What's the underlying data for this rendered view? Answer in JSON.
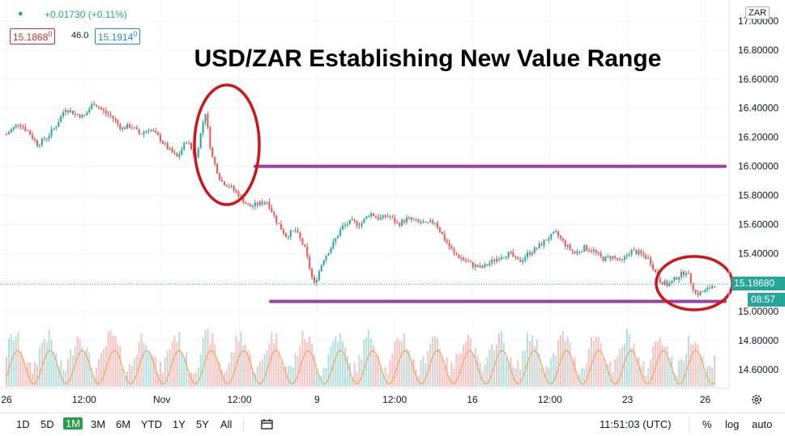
{
  "header": {
    "change": "+0.01730 (+0.11%)",
    "sell_price": "15.1868",
    "sell_suffix": "0",
    "spread": "46.0",
    "buy_price": "15.1914",
    "buy_suffix": "0",
    "currency": "ZAR",
    "colors": {
      "sell": "#d32f2f",
      "buy": "#1e88e5",
      "dot": "#26a69a"
    }
  },
  "chart_data": {
    "type": "candlestick",
    "title": "USD/ZAR Establishing New Value Range",
    "y_ticks": [
      "14.60000",
      "14.80000",
      "15.00000",
      "15.20000",
      "15.40000",
      "15.60000",
      "15.80000",
      "16.00000",
      "16.20000",
      "16.40000",
      "16.60000",
      "16.80000",
      "17.00000"
    ],
    "ylim": [
      14.5,
      17.1
    ],
    "x_ticks": [
      {
        "label": "26",
        "t": 0
      },
      {
        "label": "12:00",
        "t": 0.5
      },
      {
        "label": "Nov",
        "t": 1
      },
      {
        "label": "12:00",
        "t": 1.5
      },
      {
        "label": "9",
        "t": 2
      },
      {
        "label": "12:00",
        "t": 2.5
      },
      {
        "label": "16",
        "t": 3
      },
      {
        "label": "12:00",
        "t": 3.5
      },
      {
        "label": "23",
        "t": 4
      },
      {
        "label": "26",
        "t": 4.5
      }
    ],
    "price_path": [
      [
        0.0,
        16.22
      ],
      [
        0.08,
        16.3
      ],
      [
        0.14,
        16.24
      ],
      [
        0.2,
        16.15
      ],
      [
        0.26,
        16.2
      ],
      [
        0.32,
        16.28
      ],
      [
        0.38,
        16.4
      ],
      [
        0.44,
        16.36
      ],
      [
        0.5,
        16.34
      ],
      [
        0.56,
        16.44
      ],
      [
        0.62,
        16.38
      ],
      [
        0.68,
        16.34
      ],
      [
        0.74,
        16.26
      ],
      [
        0.8,
        16.28
      ],
      [
        0.86,
        16.22
      ],
      [
        0.92,
        16.26
      ],
      [
        0.98,
        16.2
      ],
      [
        1.04,
        16.12
      ],
      [
        1.1,
        16.06
      ],
      [
        1.16,
        16.18
      ],
      [
        1.22,
        16.06
      ],
      [
        1.28,
        16.38
      ],
      [
        1.32,
        16.08
      ],
      [
        1.38,
        15.9
      ],
      [
        1.44,
        15.86
      ],
      [
        1.5,
        15.8
      ],
      [
        1.56,
        15.72
      ],
      [
        1.62,
        15.74
      ],
      [
        1.68,
        15.76
      ],
      [
        1.74,
        15.62
      ],
      [
        1.8,
        15.52
      ],
      [
        1.86,
        15.56
      ],
      [
        1.92,
        15.44
      ],
      [
        1.98,
        15.18
      ],
      [
        2.04,
        15.36
      ],
      [
        2.1,
        15.46
      ],
      [
        2.16,
        15.58
      ],
      [
        2.22,
        15.62
      ],
      [
        2.28,
        15.6
      ],
      [
        2.34,
        15.68
      ],
      [
        2.4,
        15.64
      ],
      [
        2.46,
        15.66
      ],
      [
        2.52,
        15.6
      ],
      [
        2.58,
        15.64
      ],
      [
        2.64,
        15.62
      ],
      [
        2.7,
        15.6
      ],
      [
        2.76,
        15.62
      ],
      [
        2.82,
        15.5
      ],
      [
        2.88,
        15.4
      ],
      [
        2.94,
        15.36
      ],
      [
        3.0,
        15.32
      ],
      [
        3.06,
        15.3
      ],
      [
        3.12,
        15.34
      ],
      [
        3.18,
        15.38
      ],
      [
        3.24,
        15.4
      ],
      [
        3.3,
        15.34
      ],
      [
        3.36,
        15.4
      ],
      [
        3.42,
        15.44
      ],
      [
        3.48,
        15.5
      ],
      [
        3.54,
        15.54
      ],
      [
        3.6,
        15.46
      ],
      [
        3.66,
        15.4
      ],
      [
        3.72,
        15.44
      ],
      [
        3.78,
        15.42
      ],
      [
        3.84,
        15.36
      ],
      [
        3.9,
        15.38
      ],
      [
        3.96,
        15.34
      ],
      [
        4.02,
        15.42
      ],
      [
        4.08,
        15.4
      ],
      [
        4.14,
        15.36
      ],
      [
        4.2,
        15.22
      ],
      [
        4.26,
        15.18
      ],
      [
        4.32,
        15.24
      ],
      [
        4.38,
        15.28
      ],
      [
        4.44,
        15.12
      ],
      [
        4.5,
        15.14
      ],
      [
        4.56,
        15.19
      ]
    ],
    "current_price": "15.18680",
    "countdown": "08:57",
    "horizontal_lines": [
      16.0,
      15.07
    ],
    "annotation_color": "#9c3fa3",
    "circle_color": "#d0141c",
    "up_color": "#26a69a",
    "down_color": "#ef5350",
    "volume_color": "#f4a460"
  },
  "toolbar": {
    "timeframes": [
      "1D",
      "5D",
      "1M",
      "3M",
      "6M",
      "YTD",
      "1Y",
      "5Y",
      "All"
    ],
    "active": "1M",
    "time": "11:51:03 (UTC)",
    "percent": "%",
    "log": "log",
    "auto": "auto",
    "icons": {
      "compare": "calendar-range-icon",
      "settings": "gear-icon"
    }
  }
}
